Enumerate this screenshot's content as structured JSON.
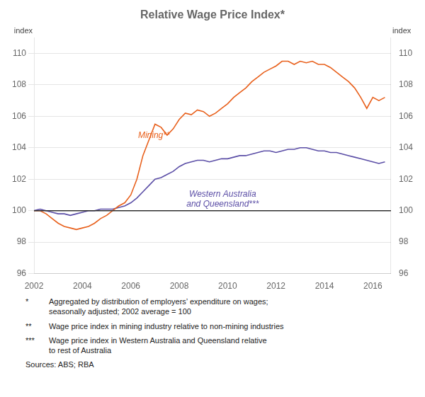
{
  "chart_data": {
    "type": "line",
    "title": "Relative Wage Price Index*",
    "ylabel": "index",
    "y2label": "index",
    "xlim": [
      2002,
      2016.75
    ],
    "xticks": [
      2002,
      2004,
      2006,
      2008,
      2010,
      2012,
      2014,
      2016
    ],
    "ylim": [
      96,
      111
    ],
    "yticks": [
      96,
      98,
      100,
      102,
      104,
      106,
      108,
      110
    ],
    "y2lim": [
      96,
      111
    ],
    "y2ticks": [
      96,
      98,
      100,
      102,
      104,
      106,
      108,
      110
    ],
    "grid": true,
    "hline": {
      "y": 100,
      "color": "#303030"
    },
    "x": [
      2002.0,
      2002.25,
      2002.5,
      2002.75,
      2003.0,
      2003.25,
      2003.5,
      2003.75,
      2004.0,
      2004.25,
      2004.5,
      2004.75,
      2005.0,
      2005.25,
      2005.5,
      2005.75,
      2006.0,
      2006.25,
      2006.5,
      2006.75,
      2007.0,
      2007.25,
      2007.5,
      2007.75,
      2008.0,
      2008.25,
      2008.5,
      2008.75,
      2009.0,
      2009.25,
      2009.5,
      2009.75,
      2010.0,
      2010.25,
      2010.5,
      2010.75,
      2011.0,
      2011.25,
      2011.5,
      2011.75,
      2012.0,
      2012.25,
      2012.5,
      2012.75,
      2013.0,
      2013.25,
      2013.5,
      2013.75,
      2014.0,
      2014.25,
      2014.5,
      2014.75,
      2015.0,
      2015.25,
      2015.5,
      2015.75,
      2016.0,
      2016.25,
      2016.5
    ],
    "series": [
      {
        "color": "#E8601C",
        "values": [
          100.0,
          100.0,
          99.8,
          99.5,
          99.2,
          99.0,
          98.9,
          98.8,
          98.9,
          99.0,
          99.2,
          99.5,
          99.7,
          100.0,
          100.3,
          100.5,
          101.0,
          102.0,
          103.5,
          104.5,
          105.5,
          105.3,
          104.8,
          105.2,
          105.8,
          106.2,
          106.1,
          106.4,
          106.3,
          106.0,
          106.2,
          106.5,
          106.8,
          107.2,
          107.5,
          107.8,
          108.2,
          108.5,
          108.8,
          109.0,
          109.2,
          109.5,
          109.5,
          109.3,
          109.5,
          109.4,
          109.5,
          109.3,
          109.3,
          109.1,
          108.8,
          108.5,
          108.2,
          107.8,
          107.2,
          106.5,
          107.2,
          107.0,
          107.2
        ]
      },
      {
        "color": "#5B4EA6",
        "values": [
          100.0,
          100.1,
          100.0,
          99.9,
          99.8,
          99.8,
          99.7,
          99.8,
          99.9,
          100.0,
          100.0,
          100.1,
          100.1,
          100.1,
          100.2,
          100.3,
          100.5,
          100.8,
          101.2,
          101.6,
          102.0,
          102.1,
          102.3,
          102.5,
          102.8,
          103.0,
          103.1,
          103.2,
          103.2,
          103.1,
          103.2,
          103.3,
          103.3,
          103.4,
          103.5,
          103.5,
          103.6,
          103.7,
          103.8,
          103.8,
          103.7,
          103.8,
          103.9,
          103.9,
          104.0,
          104.0,
          103.9,
          103.8,
          103.8,
          103.7,
          103.7,
          103.6,
          103.5,
          103.4,
          103.3,
          103.2,
          103.1,
          103.0,
          103.1
        ]
      }
    ],
    "annotations": [
      {
        "text": "Mining**",
        "x": 2006.3,
        "y": 104.5,
        "color": "#E8601C"
      },
      {
        "text": "Western Australia\nand Queensland***",
        "x": 2008.3,
        "y": 101.4,
        "color": "#5B4EA6"
      }
    ],
    "footnotes": [
      {
        "mark": "*",
        "text": "Aggregated by distribution of employers’ expenditure on wages;\nseasonally adjusted; 2002 average = 100"
      },
      {
        "mark": "**",
        "text": "Wage price index in mining industry relative to non-mining industries"
      },
      {
        "mark": "***",
        "text": "Wage price index in Western Australia and Queensland relative\nto rest of Australia"
      }
    ],
    "source": "Sources: ABS; RBA"
  }
}
